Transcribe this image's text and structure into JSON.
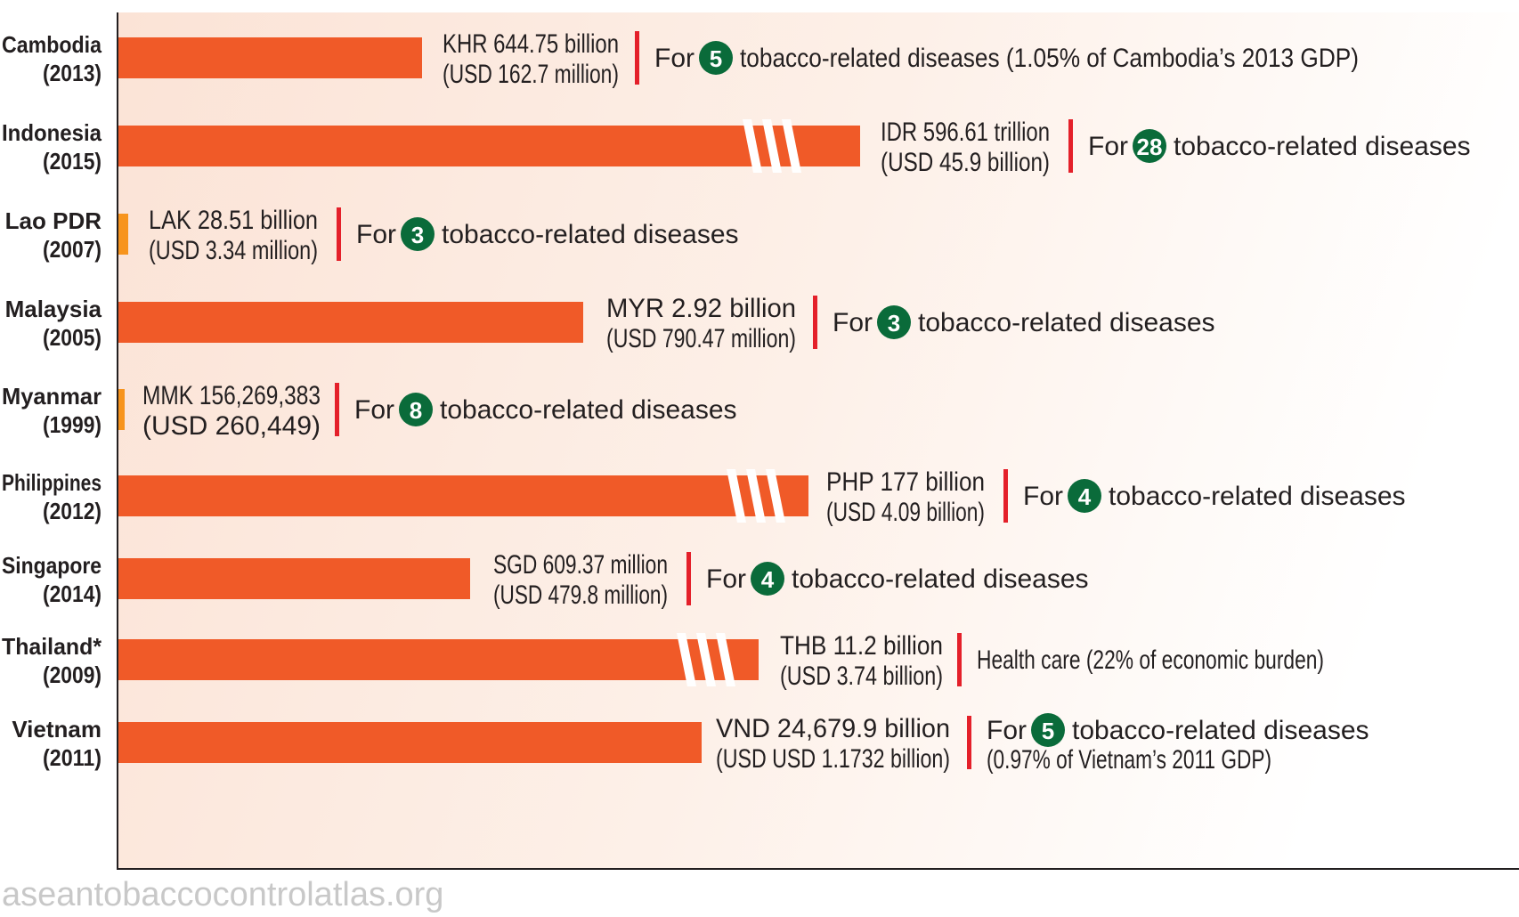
{
  "chart_data": {
    "type": "bar",
    "orientation": "horizontal",
    "value_unit": "USD",
    "bar_color": "#f05a28",
    "small_bar_color": "#f7941d",
    "badge_color": "#0a6b3a",
    "separator_color": "#e4202a",
    "axis_broken": [
      "Indonesia (2015)",
      "Philippines (2012)",
      "Thailand* (2009)"
    ],
    "categories": [
      {
        "country": "Cambodia",
        "year": "(2013)",
        "value_usd": 162700000,
        "local_line1": "KHR 644.75 billion",
        "local_line2": "(USD 162.7 million)",
        "note_prefix": "For",
        "badge": "5",
        "note_text": "tobacco-related diseases (1.05% of Cambodia’s 2013 GDP)",
        "note_line2": ""
      },
      {
        "country": "Indonesia",
        "year": "(2015)",
        "value_usd": 45900000000,
        "local_line1": "IDR 596.61 trillion",
        "local_line2": "(USD 45.9 billion)",
        "note_prefix": "For",
        "badge": "28",
        "note_text": "tobacco-related diseases",
        "note_line2": ""
      },
      {
        "country": "Lao PDR",
        "year": "(2007)",
        "value_usd": 3340000,
        "local_line1": "LAK 28.51 billion",
        "local_line2": "(USD 3.34 million)",
        "note_prefix": "For",
        "badge": "3",
        "note_text": "tobacco-related diseases",
        "note_line2": ""
      },
      {
        "country": "Malaysia",
        "year": "(2005)",
        "value_usd": 790470000,
        "local_line1": "MYR 2.92 billion",
        "local_line2": "(USD 790.47 million)",
        "note_prefix": "For",
        "badge": "3",
        "note_text": "tobacco-related diseases",
        "note_line2": ""
      },
      {
        "country": "Myanmar",
        "year": "(1999)",
        "value_usd": 260449,
        "local_line1": "MMK 156,269,383",
        "local_line2": "(USD 260,449)",
        "note_prefix": "For",
        "badge": "8",
        "note_text": "tobacco-related diseases",
        "note_line2": ""
      },
      {
        "country": "Philippines",
        "year": "(2012)",
        "value_usd": 4090000000,
        "local_line1": "PHP 177 billion",
        "local_line2": "(USD 4.09 billion)",
        "note_prefix": "For",
        "badge": "4",
        "note_text": "tobacco-related diseases",
        "note_line2": ""
      },
      {
        "country": "Singapore",
        "year": "(2014)",
        "value_usd": 479800000,
        "local_line1": "SGD 609.37 million",
        "local_line2": "(USD 479.8 million)",
        "note_prefix": "For",
        "badge": "4",
        "note_text": "tobacco-related diseases",
        "note_line2": ""
      },
      {
        "country": "Thailand*",
        "year": "(2009)",
        "value_usd": 3740000000,
        "local_line1": "THB 11.2 billion",
        "local_line2": "(USD 3.74 billion)",
        "note_prefix": "",
        "badge": "",
        "note_text": "Health care (22% of economic burden)",
        "note_line2": ""
      },
      {
        "country": "Vietnam",
        "year": "(2011)",
        "value_usd": 1173200000,
        "local_line1": "VND 24,679.9 billion",
        "local_line2": "(USD  USD 1.1732 billion)",
        "note_prefix": "For",
        "badge": "5",
        "note_text": "tobacco-related diseases",
        "note_line2": "(0.97% of Vietnam’s 2011 GDP)"
      }
    ]
  },
  "watermark": "aseantobaccocontrolatlas.org"
}
